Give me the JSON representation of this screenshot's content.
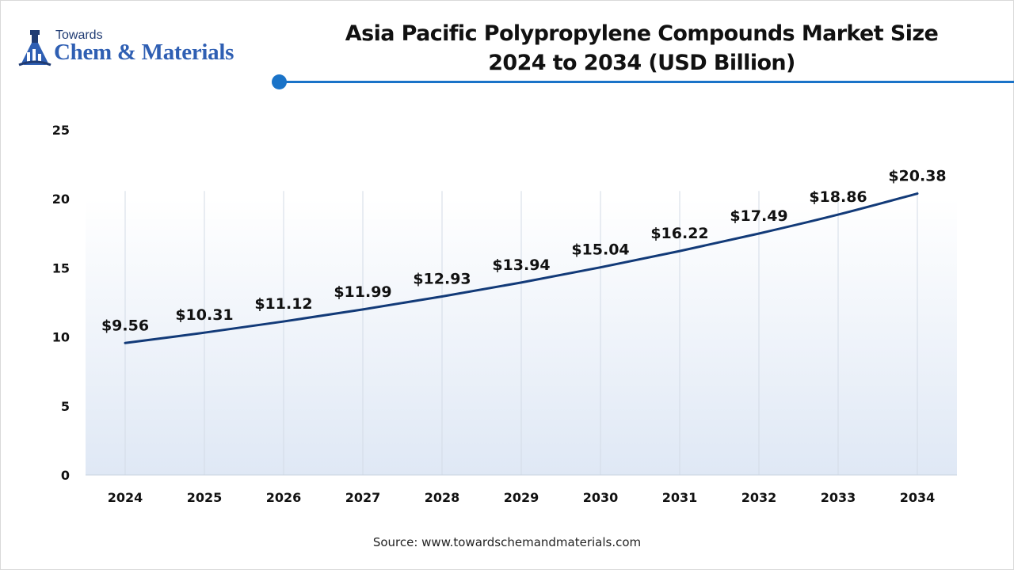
{
  "brand": {
    "line1": "Towards",
    "line2": "Chem & Materials"
  },
  "accent_color": "#1a73c8",
  "line_color": "#123a78",
  "chart_data": {
    "type": "line",
    "title_line1": "Asia Pacific Polypropylene Compounds Market Size",
    "title_line2": "2024 to 2034 (USD Billion)",
    "categories": [
      "2024",
      "2025",
      "2026",
      "2027",
      "2028",
      "2029",
      "2030",
      "2031",
      "2032",
      "2033",
      "2034"
    ],
    "series": [
      {
        "values": [
          9.56,
          10.31,
          11.12,
          11.99,
          12.93,
          13.94,
          15.04,
          16.22,
          17.49,
          18.86,
          20.38
        ],
        "labels": [
          "$9.56",
          "$10.31",
          "$11.12",
          "$11.99",
          "$12.93",
          "$13.94",
          "$15.04",
          "$16.22",
          "$17.49",
          "$18.86",
          "$20.38"
        ]
      }
    ],
    "ylim": [
      0,
      25
    ],
    "yticks": [
      "0",
      "5",
      "10",
      "15",
      "20",
      "25"
    ],
    "xlabel": "",
    "ylabel": "",
    "grid": "vertical",
    "legend": "none"
  },
  "source": "Source: www.towardschemandmaterials.com"
}
